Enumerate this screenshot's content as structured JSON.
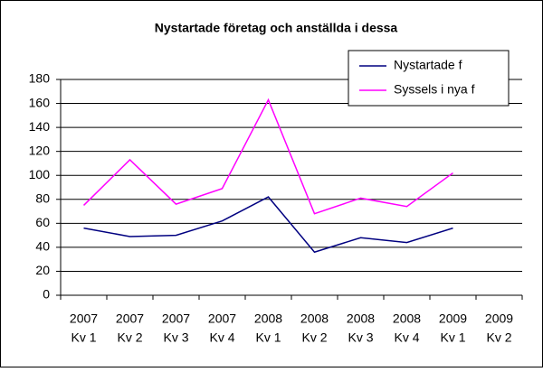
{
  "chart_data": {
    "type": "line",
    "title": "Nystartade företag och anställda i dessa",
    "categories": [
      [
        "2007",
        "Kv 1"
      ],
      [
        "2007",
        "Kv 2"
      ],
      [
        "2007",
        "Kv 3"
      ],
      [
        "2007",
        "Kv 4"
      ],
      [
        "2008",
        "Kv 1"
      ],
      [
        "2008",
        "Kv 2"
      ],
      [
        "2008",
        "Kv 3"
      ],
      [
        "2008",
        "Kv 4"
      ],
      [
        "2009",
        "Kv 1"
      ],
      [
        "2009",
        "Kv 2"
      ]
    ],
    "series": [
      {
        "name": "Nystartade f",
        "color": "#000080",
        "values": [
          56,
          49,
          50,
          62,
          82,
          36,
          48,
          44,
          56,
          null
        ]
      },
      {
        "name": "Syssels i nya f",
        "color": "#ff00ff",
        "values": [
          75,
          113,
          76,
          89,
          163,
          68,
          81,
          74,
          102,
          null
        ]
      }
    ],
    "ylim": [
      0,
      180
    ],
    "yticks": [
      0,
      20,
      40,
      60,
      80,
      100,
      120,
      140,
      160,
      180
    ],
    "grid": true,
    "legend": "top-right"
  }
}
